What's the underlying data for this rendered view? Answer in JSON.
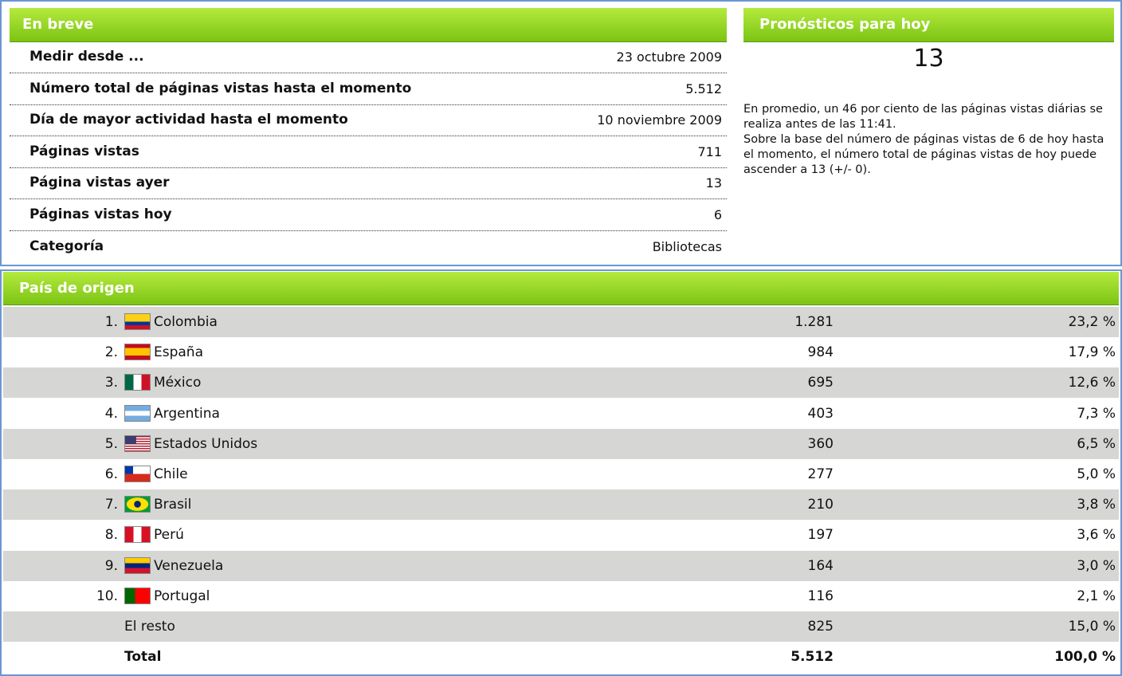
{
  "summary": {
    "title": "En breve",
    "rows": [
      [
        "Medir desde ...",
        "23 octubre 2009"
      ],
      [
        "Número total de páginas vistas hasta el momento",
        "5.512"
      ],
      [
        "Día de mayor actividad hasta el momento",
        "10 noviembre 2009"
      ],
      [
        "Páginas vistas",
        "711"
      ],
      [
        "Página vistas ayer",
        "13"
      ],
      [
        "Páginas vistas hoy",
        "6"
      ],
      [
        "Categoría",
        "Bibliotecas"
      ]
    ]
  },
  "forecast": {
    "title": "Pronósticos para hoy",
    "value": "13",
    "text": [
      "En promedio, un 46 por ciento de las páginas vistas diárias se realiza antes de las 11:41.",
      "Sobre la base del número de páginas vistas de 6 de hoy hasta el momento, el número total de páginas vistas de hoy puede ascender a 13 (+/- 0)."
    ]
  },
  "countries": {
    "title": "País de origen",
    "rows": [
      [
        "1.",
        "Colombia",
        "1.281",
        "23,2 %"
      ],
      [
        "2.",
        "España",
        "984",
        "17,9 %"
      ],
      [
        "3.",
        "México",
        "695",
        "12,6 %"
      ],
      [
        "4.",
        "Argentina",
        "403",
        "7,3 %"
      ],
      [
        "5.",
        "Estados Unidos",
        "360",
        "6,5 %"
      ],
      [
        "6.",
        "Chile",
        "277",
        "5,0 %"
      ],
      [
        "7.",
        "Brasil",
        "210",
        "3,8 %"
      ],
      [
        "8.",
        "Perú",
        "197",
        "3,6 %"
      ],
      [
        "9.",
        "Venezuela",
        "164",
        "3,0 %"
      ],
      [
        "10.",
        "Portugal",
        "116",
        "2,1 %"
      ]
    ],
    "rest": [
      "El resto",
      "825",
      "15,0 %"
    ],
    "total": [
      "Total",
      "5.512",
      "100,0 %"
    ]
  }
}
